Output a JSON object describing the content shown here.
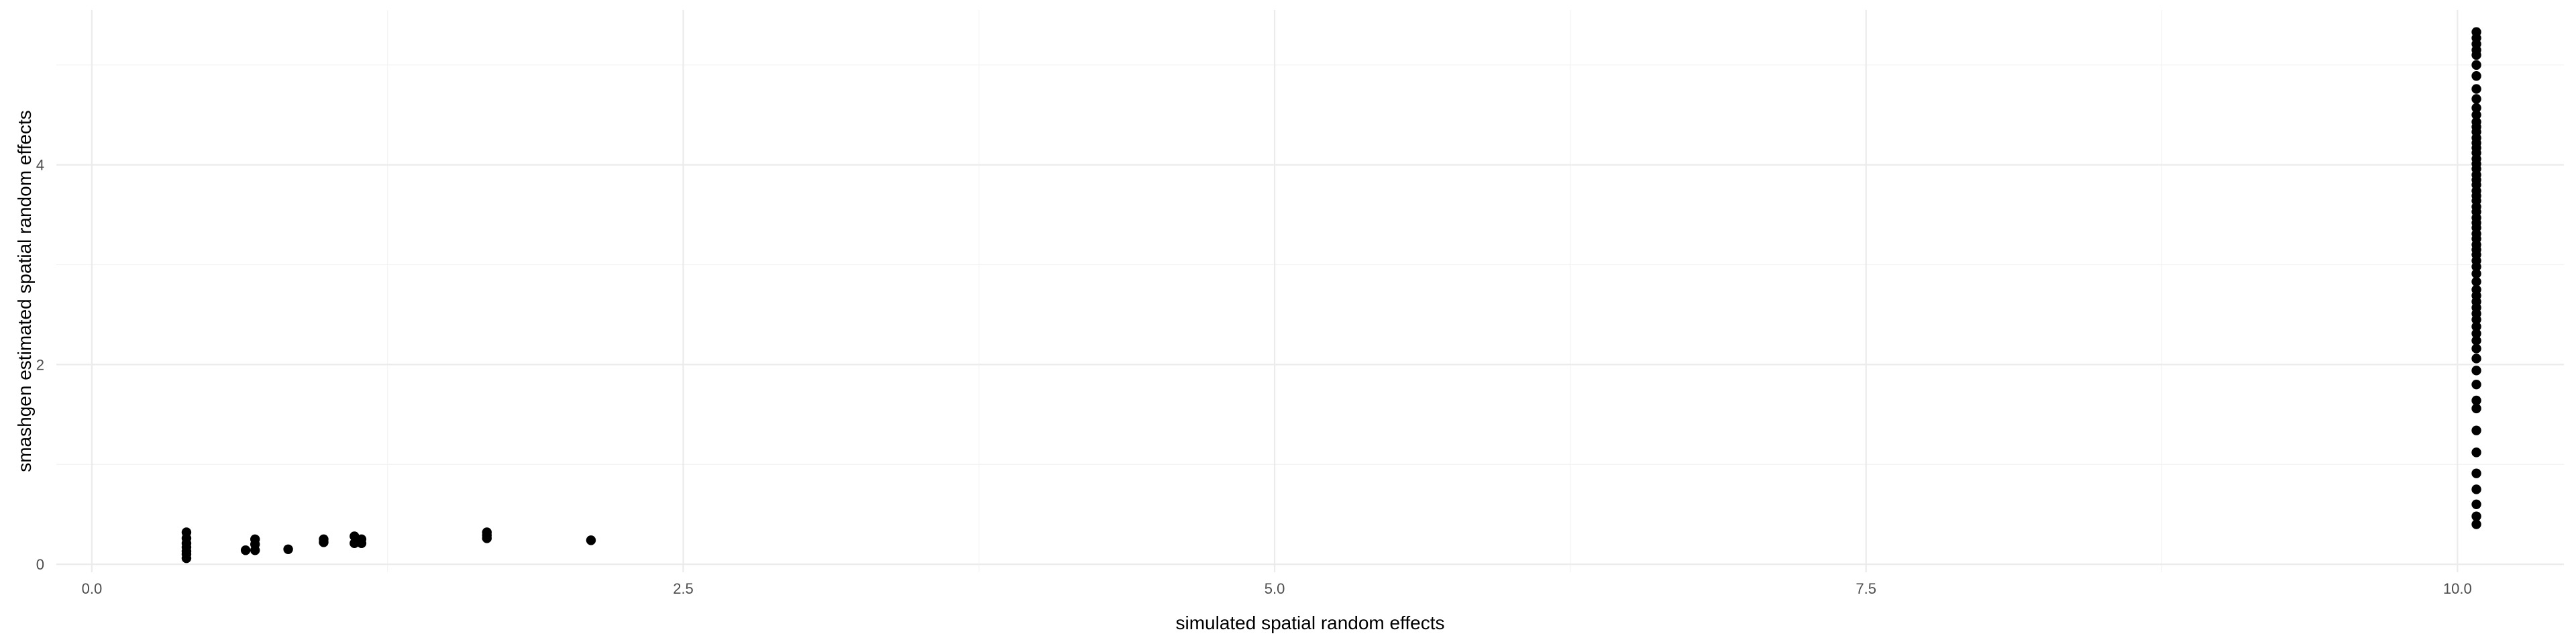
{
  "chart_data": {
    "type": "scatter",
    "title": "",
    "xlabel": "simulated spatial random effects",
    "ylabel": "smashgen estimated spatial random effects",
    "xlim": [
      -0.15,
      10.45
    ],
    "ylim": [
      -0.08,
      5.55
    ],
    "x_ticks": [
      {
        "value": 0,
        "label": "0.0"
      },
      {
        "value": 2.5,
        "label": "2.5"
      },
      {
        "value": 5,
        "label": "5.0"
      },
      {
        "value": 7.5,
        "label": "7.5"
      },
      {
        "value": 10,
        "label": "10.0"
      }
    ],
    "y_ticks": [
      {
        "value": 0,
        "label": "0"
      },
      {
        "value": 2,
        "label": "2"
      },
      {
        "value": 4,
        "label": "4"
      }
    ],
    "grid": true,
    "legend": "none",
    "point_color": "#000000",
    "series": [
      {
        "points": [
          [
            0.4,
            0.32
          ],
          [
            0.4,
            0.26
          ],
          [
            0.4,
            0.21
          ],
          [
            0.4,
            0.17
          ],
          [
            0.4,
            0.13
          ],
          [
            0.4,
            0.1
          ],
          [
            0.4,
            0.06
          ],
          [
            0.65,
            0.14
          ],
          [
            0.69,
            0.14
          ],
          [
            0.69,
            0.2
          ],
          [
            0.69,
            0.25
          ],
          [
            0.83,
            0.15
          ],
          [
            0.98,
            0.22
          ],
          [
            0.98,
            0.25
          ],
          [
            1.11,
            0.21
          ],
          [
            1.11,
            0.28
          ],
          [
            1.14,
            0.25
          ],
          [
            1.14,
            0.21
          ],
          [
            1.67,
            0.26
          ],
          [
            1.67,
            0.29
          ],
          [
            1.67,
            0.32
          ],
          [
            2.11,
            0.24
          ],
          [
            10.08,
            5.33
          ],
          [
            10.08,
            5.27
          ],
          [
            10.08,
            5.21
          ],
          [
            10.08,
            5.15
          ],
          [
            10.08,
            5.1
          ],
          [
            10.08,
            5.0
          ],
          [
            10.08,
            4.89
          ],
          [
            10.08,
            4.76
          ],
          [
            10.08,
            4.66
          ],
          [
            10.08,
            4.57
          ],
          [
            10.08,
            4.5
          ],
          [
            10.08,
            4.43
          ],
          [
            10.08,
            4.38
          ],
          [
            10.08,
            4.33
          ],
          [
            10.08,
            4.27
          ],
          [
            10.08,
            4.22
          ],
          [
            10.08,
            4.17
          ],
          [
            10.08,
            4.12
          ],
          [
            10.08,
            4.06
          ],
          [
            10.08,
            4.01
          ],
          [
            10.08,
            3.96
          ],
          [
            10.08,
            3.9
          ],
          [
            10.08,
            3.85
          ],
          [
            10.08,
            3.8
          ],
          [
            10.08,
            3.74
          ],
          [
            10.08,
            3.69
          ],
          [
            10.08,
            3.64
          ],
          [
            10.08,
            3.58
          ],
          [
            10.08,
            3.53
          ],
          [
            10.08,
            3.47
          ],
          [
            10.08,
            3.42
          ],
          [
            10.08,
            3.37
          ],
          [
            10.08,
            3.31
          ],
          [
            10.08,
            3.26
          ],
          [
            10.08,
            3.2
          ],
          [
            10.08,
            3.15
          ],
          [
            10.08,
            3.1
          ],
          [
            10.08,
            3.04
          ],
          [
            10.08,
            2.98
          ],
          [
            10.08,
            2.91
          ],
          [
            10.08,
            2.83
          ],
          [
            10.08,
            2.75
          ],
          [
            10.08,
            2.69
          ],
          [
            10.08,
            2.63
          ],
          [
            10.08,
            2.57
          ],
          [
            10.08,
            2.51
          ],
          [
            10.08,
            2.45
          ],
          [
            10.08,
            2.38
          ],
          [
            10.08,
            2.31
          ],
          [
            10.08,
            2.24
          ],
          [
            10.08,
            2.16
          ],
          [
            10.08,
            2.06
          ],
          [
            10.08,
            1.94
          ],
          [
            10.08,
            1.8
          ],
          [
            10.08,
            1.64
          ],
          [
            10.08,
            1.56
          ],
          [
            10.08,
            1.34
          ],
          [
            10.08,
            1.12
          ],
          [
            10.08,
            0.91
          ],
          [
            10.08,
            0.75
          ],
          [
            10.08,
            0.6
          ],
          [
            10.08,
            0.48
          ],
          [
            10.08,
            0.4
          ]
        ]
      }
    ]
  }
}
